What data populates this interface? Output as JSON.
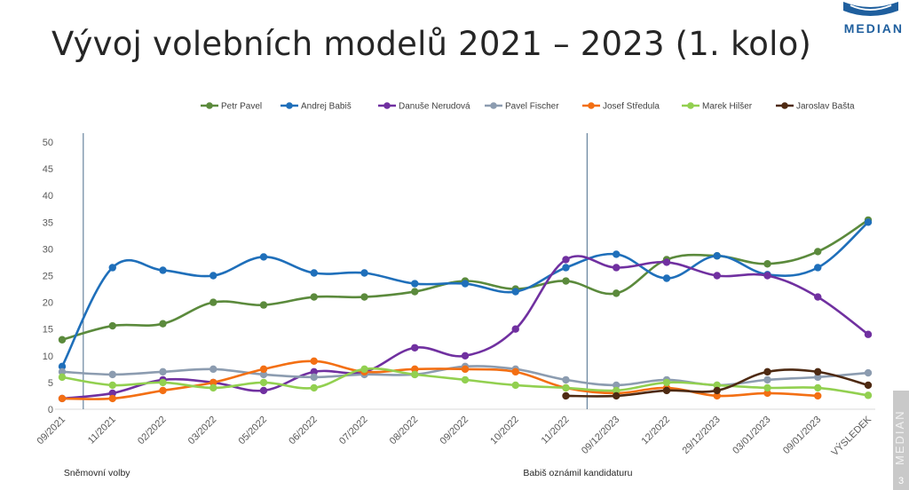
{
  "title": "Vývoj volebních modelů 2021 – 2023 (1. kolo)",
  "brand": "MEDIAN",
  "side_brand": "MEDIAN",
  "page_number": "3",
  "colors": {
    "Petr Pavel": "#5b8a3c",
    "Andrej Babiš": "#1f6fba",
    "Danuše Nerudová": "#7030a0",
    "Pavel Fischer": "#8c9cb0",
    "Josef Středula": "#f36f13",
    "Marek Hilšer": "#92d050",
    "Jaroslav Bašta": "#4e2a12",
    "markers": "#4a6b8a",
    "grid": "#d9d9d9"
  },
  "chart_data": {
    "type": "line",
    "title": "Vývoj volebních modelů 2021 – 2023 (1. kolo)",
    "categories": [
      "09/2021",
      "11/2021",
      "02/2022",
      "03/2022",
      "05/2022",
      "06/2022",
      "07/2022",
      "08/2022",
      "09/2022",
      "10/2022",
      "11/2022",
      "09/12/2023",
      "12/2022",
      "29/12/2023",
      "03/01/2023",
      "09/01/2023",
      "VÝSLEDEK"
    ],
    "y_ticks": [
      0,
      5,
      10,
      15,
      20,
      25,
      30,
      35,
      40,
      45,
      50
    ],
    "ylim": [
      0,
      50
    ],
    "grid": false,
    "legend_position": "top-right",
    "series": [
      {
        "name": "Petr Pavel",
        "values": [
          13,
          15.6,
          16,
          20,
          19.5,
          21,
          21,
          22,
          24,
          22.5,
          24,
          21.7,
          28,
          28.7,
          27.2,
          29.5,
          35.4
        ]
      },
      {
        "name": "Andrej Babiš",
        "values": [
          8,
          26.5,
          26,
          25,
          28.5,
          25.5,
          25.5,
          23.5,
          23.5,
          22,
          26.5,
          29,
          24.5,
          28.7,
          25.2,
          26.5,
          35
        ]
      },
      {
        "name": "Danuše Nerudová",
        "values": [
          2,
          3,
          5.5,
          5,
          3.5,
          7,
          7,
          11.5,
          10,
          15,
          28,
          26.5,
          27.5,
          25,
          25,
          21,
          14
        ]
      },
      {
        "name": "Pavel Fischer",
        "values": [
          7,
          6.5,
          7,
          7.5,
          6.5,
          6,
          6.5,
          6.5,
          8,
          7.5,
          5.5,
          4.5,
          5.5,
          4.5,
          5.5,
          6,
          6.8
        ]
      },
      {
        "name": "Josef Středula",
        "values": [
          2,
          2,
          3.5,
          5,
          7.5,
          9,
          7,
          7.5,
          7.5,
          7,
          4,
          3,
          4,
          2.5,
          3,
          2.5,
          null
        ]
      },
      {
        "name": "Marek Hilšer",
        "values": [
          6,
          4.5,
          5,
          4,
          5,
          4,
          7.5,
          6.5,
          5.5,
          4.5,
          4,
          3.5,
          5,
          4.5,
          4,
          4,
          2.6
        ]
      },
      {
        "name": "Jaroslav Bašta",
        "values": [
          null,
          null,
          null,
          null,
          null,
          null,
          null,
          null,
          null,
          null,
          2.5,
          2.5,
          3.5,
          3.5,
          7,
          7,
          4.5
        ]
      }
    ],
    "markers": [
      {
        "category": "09/2021",
        "label": "Sněmovní volby"
      },
      {
        "category": "11/2022",
        "label": "Babiš oznámil kandidaturu"
      }
    ]
  }
}
